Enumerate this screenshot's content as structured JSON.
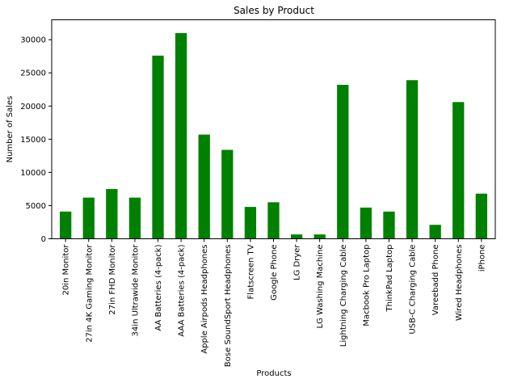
{
  "chart_data": {
    "type": "bar",
    "title": "Sales by Product",
    "xlabel": "Products",
    "ylabel": "Number of Sales",
    "ylim": [
      0,
      33000
    ],
    "yticks": [
      0,
      5000,
      10000,
      15000,
      20000,
      25000,
      30000
    ],
    "grid": false,
    "bar_color": "#008000",
    "categories": [
      "20in Monitor",
      "27in 4K Gaming Monitor",
      "27in FHD Monitor",
      "34in Ultrawide Monitor",
      "AA Batteries (4-pack)",
      "AAA Batteries (4-pack)",
      "Apple Airpods Headphones",
      "Bose SoundSport Headphones",
      "Flatscreen TV",
      "Google Phone",
      "LG Dryer",
      "LG Washing Machine",
      "Lightning Charging Cable",
      "Macbook Pro Laptop",
      "ThinkPad Laptop",
      "USB-C Charging Cable",
      "Vareebadd Phone",
      "Wired Headphones",
      "iPhone"
    ],
    "values": [
      4100,
      6200,
      7500,
      6200,
      27600,
      31000,
      15700,
      13400,
      4800,
      5500,
      650,
      650,
      23200,
      4700,
      4100,
      23900,
      2100,
      20600,
      6800
    ]
  }
}
